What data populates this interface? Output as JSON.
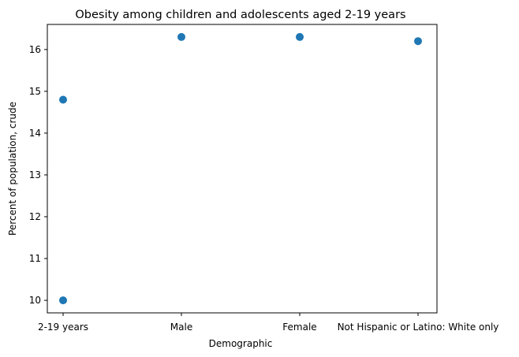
{
  "chart_data": {
    "type": "scatter",
    "title": "Obesity among children and adolescents aged 2-19 years",
    "xlabel": "Demographic",
    "ylabel": "Percent of population, crude",
    "categories": [
      "2-19 years",
      "Male",
      "Female",
      "Not Hispanic or Latino: White only"
    ],
    "points": [
      {
        "x": "2-19 years",
        "y": 14.8
      },
      {
        "x": "2-19 years",
        "y": 10.0
      },
      {
        "x": "Male",
        "y": 16.3
      },
      {
        "x": "Female",
        "y": 16.3
      },
      {
        "x": "Not Hispanic or Latino: White only",
        "y": 16.2
      }
    ],
    "yticks": [
      "10",
      "11",
      "12",
      "13",
      "14",
      "15",
      "16"
    ],
    "ylim": [
      9.7,
      16.6
    ],
    "grid": false,
    "colors": {
      "marker": "#1f77b4"
    }
  }
}
